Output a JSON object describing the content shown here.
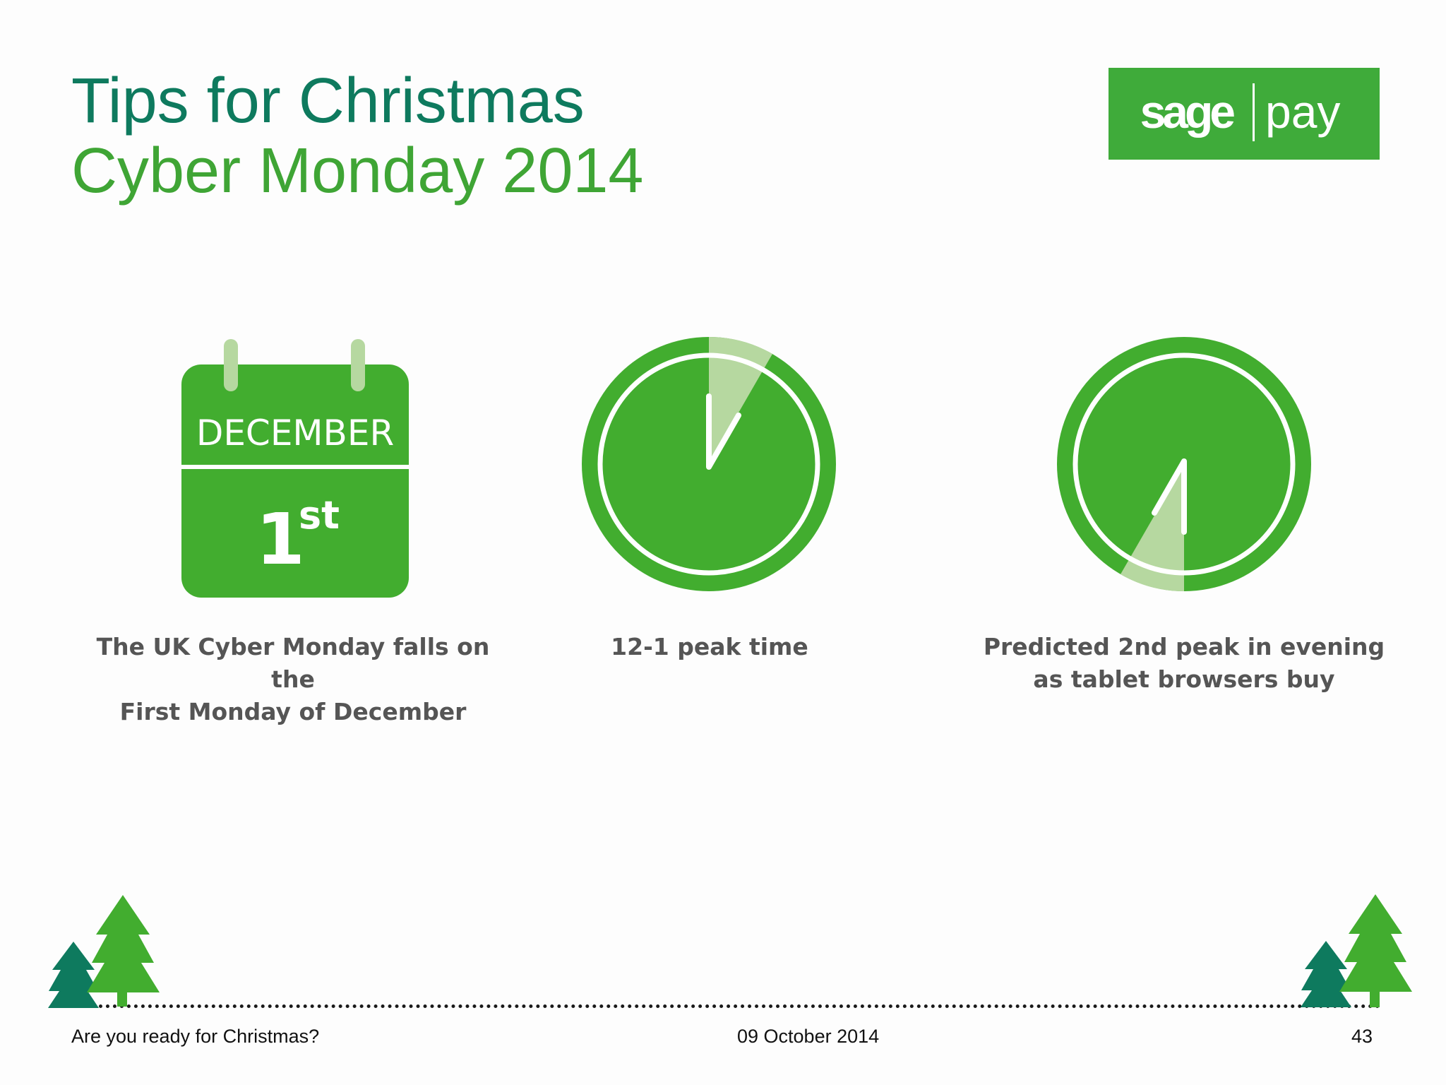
{
  "header": {
    "title_line1": "Tips for Christmas",
    "title_line2": "Cyber Monday 2014"
  },
  "logo": {
    "text_left": "sage",
    "text_right": "pay",
    "icon": "sage-pay-logo"
  },
  "tips": [
    {
      "icon": "calendar-icon",
      "month": "DECEMBER",
      "day_number": "1",
      "day_suffix": "st",
      "caption_line1": "The UK Cyber Monday falls on the",
      "caption_line2": "First Monday of December"
    },
    {
      "icon": "clock-noon-icon",
      "caption_line1": "12-1 peak time",
      "caption_line2": ""
    },
    {
      "icon": "clock-evening-icon",
      "caption_line1": "Predicted 2nd peak in evening",
      "caption_line2": "as tablet browsers buy"
    }
  ],
  "footer": {
    "left_text": "Are you ready for Christmas?",
    "date": "09 October 2014",
    "page_number": "43"
  },
  "colors": {
    "dark_green": "#0e7a5e",
    "green": "#3fa535",
    "light_green": "#b6d8a0",
    "caption_gray": "#555555"
  }
}
